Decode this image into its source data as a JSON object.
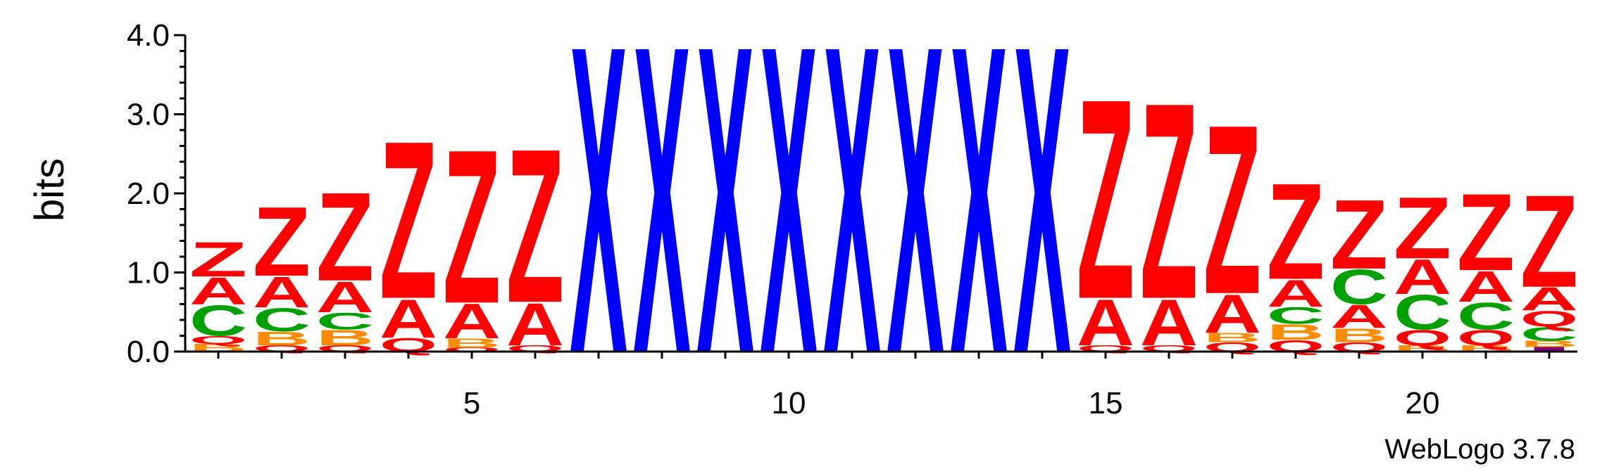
{
  "chart_data": {
    "type": "sequence-logo",
    "title": "",
    "xlabel": "",
    "ylabel": "bits",
    "ylim": [
      0,
      4.0
    ],
    "y_ticks": [
      "0.0",
      "1.0",
      "2.0",
      "3.0",
      "4.0"
    ],
    "y_tick_values": [
      0,
      1,
      2,
      3,
      4
    ],
    "x_ticks": [
      "5",
      "10",
      "15",
      "20"
    ],
    "x_tick_values": [
      5,
      10,
      15,
      20
    ],
    "positions": [
      1,
      2,
      3,
      4,
      5,
      6,
      7,
      8,
      9,
      10,
      11,
      12,
      13,
      14,
      15,
      16,
      17,
      18,
      19,
      20,
      21,
      22
    ],
    "colors": {
      "Z": "#ff0000",
      "A": "#ff0000",
      "Q": "#ff0000",
      "C": "#00a000",
      "B": "#ff8c00",
      "X": "#0000ff",
      "I": "#800080"
    },
    "stacks": [
      {
        "position": 1,
        "letters": [
          {
            "l": "B",
            "h": 0.1
          },
          {
            "l": "Q",
            "h": 0.1
          },
          {
            "l": "C",
            "h": 0.4
          },
          {
            "l": "A",
            "h": 0.35
          },
          {
            "l": "Z",
            "h": 0.45
          }
        ]
      },
      {
        "position": 2,
        "letters": [
          {
            "l": "Q",
            "h": 0.08
          },
          {
            "l": "B",
            "h": 0.18
          },
          {
            "l": "C",
            "h": 0.3
          },
          {
            "l": "A",
            "h": 0.4
          },
          {
            "l": "Z",
            "h": 0.9
          }
        ]
      },
      {
        "position": 3,
        "letters": [
          {
            "l": "Q",
            "h": 0.08
          },
          {
            "l": "B",
            "h": 0.2
          },
          {
            "l": "C",
            "h": 0.22
          },
          {
            "l": "A",
            "h": 0.4
          },
          {
            "l": "Z",
            "h": 1.15
          }
        ]
      },
      {
        "position": 4,
        "letters": [
          {
            "l": "Q",
            "h": 0.18
          },
          {
            "l": "A",
            "h": 0.5
          },
          {
            "l": "Z",
            "h": 2.05
          }
        ]
      },
      {
        "position": 5,
        "letters": [
          {
            "l": "Q",
            "h": 0.05
          },
          {
            "l": "B",
            "h": 0.12
          },
          {
            "l": "A",
            "h": 0.45
          },
          {
            "l": "Z",
            "h": 2.0
          }
        ]
      },
      {
        "position": 6,
        "letters": [
          {
            "l": "Q",
            "h": 0.08
          },
          {
            "l": "A",
            "h": 0.55
          },
          {
            "l": "Z",
            "h": 2.0
          }
        ]
      },
      {
        "position": 7,
        "letters": [
          {
            "l": "X",
            "h": 4.0
          }
        ]
      },
      {
        "position": 8,
        "letters": [
          {
            "l": "X",
            "h": 4.0
          }
        ]
      },
      {
        "position": 9,
        "letters": [
          {
            "l": "X",
            "h": 4.0
          }
        ]
      },
      {
        "position": 10,
        "letters": [
          {
            "l": "X",
            "h": 4.0
          }
        ]
      },
      {
        "position": 11,
        "letters": [
          {
            "l": "X",
            "h": 4.0
          }
        ]
      },
      {
        "position": 12,
        "letters": [
          {
            "l": "X",
            "h": 4.0
          }
        ]
      },
      {
        "position": 13,
        "letters": [
          {
            "l": "X",
            "h": 4.0
          }
        ]
      },
      {
        "position": 14,
        "letters": [
          {
            "l": "X",
            "h": 4.0
          }
        ]
      },
      {
        "position": 15,
        "letters": [
          {
            "l": "Q",
            "h": 0.08
          },
          {
            "l": "A",
            "h": 0.6
          },
          {
            "l": "Z",
            "h": 2.6
          }
        ]
      },
      {
        "position": 16,
        "letters": [
          {
            "l": "Q",
            "h": 0.08
          },
          {
            "l": "A",
            "h": 0.6
          },
          {
            "l": "Z",
            "h": 2.55
          }
        ]
      },
      {
        "position": 17,
        "letters": [
          {
            "l": "Q",
            "h": 0.12
          },
          {
            "l": "B",
            "h": 0.12
          },
          {
            "l": "A",
            "h": 0.5
          },
          {
            "l": "Z",
            "h": 2.2
          }
        ]
      },
      {
        "position": 18,
        "letters": [
          {
            "l": "Q",
            "h": 0.15
          },
          {
            "l": "B",
            "h": 0.2
          },
          {
            "l": "C",
            "h": 0.22
          },
          {
            "l": "A",
            "h": 0.35
          },
          {
            "l": "Z",
            "h": 1.25
          }
        ]
      },
      {
        "position": 19,
        "letters": [
          {
            "l": "Q",
            "h": 0.12
          },
          {
            "l": "B",
            "h": 0.18
          },
          {
            "l": "A",
            "h": 0.3
          },
          {
            "l": "C",
            "h": 0.45
          },
          {
            "l": "Z",
            "h": 0.9
          }
        ]
      },
      {
        "position": 20,
        "letters": [
          {
            "l": "B",
            "h": 0.08
          },
          {
            "l": "Q",
            "h": 0.2
          },
          {
            "l": "C",
            "h": 0.45
          },
          {
            "l": "A",
            "h": 0.45
          },
          {
            "l": "Z",
            "h": 0.8
          }
        ]
      },
      {
        "position": 21,
        "letters": [
          {
            "l": "B",
            "h": 0.08
          },
          {
            "l": "Q",
            "h": 0.2
          },
          {
            "l": "C",
            "h": 0.35
          },
          {
            "l": "A",
            "h": 0.4
          },
          {
            "l": "Z",
            "h": 1.0
          }
        ]
      },
      {
        "position": 22,
        "letters": [
          {
            "l": "I",
            "h": 0.06
          },
          {
            "l": "B",
            "h": 0.08
          },
          {
            "l": "C",
            "h": 0.18
          },
          {
            "l": "Q",
            "h": 0.2
          },
          {
            "l": "A",
            "h": 0.3
          },
          {
            "l": "Z",
            "h": 1.2
          }
        ]
      }
    ]
  },
  "credit": "WebLogo 3.7.8"
}
